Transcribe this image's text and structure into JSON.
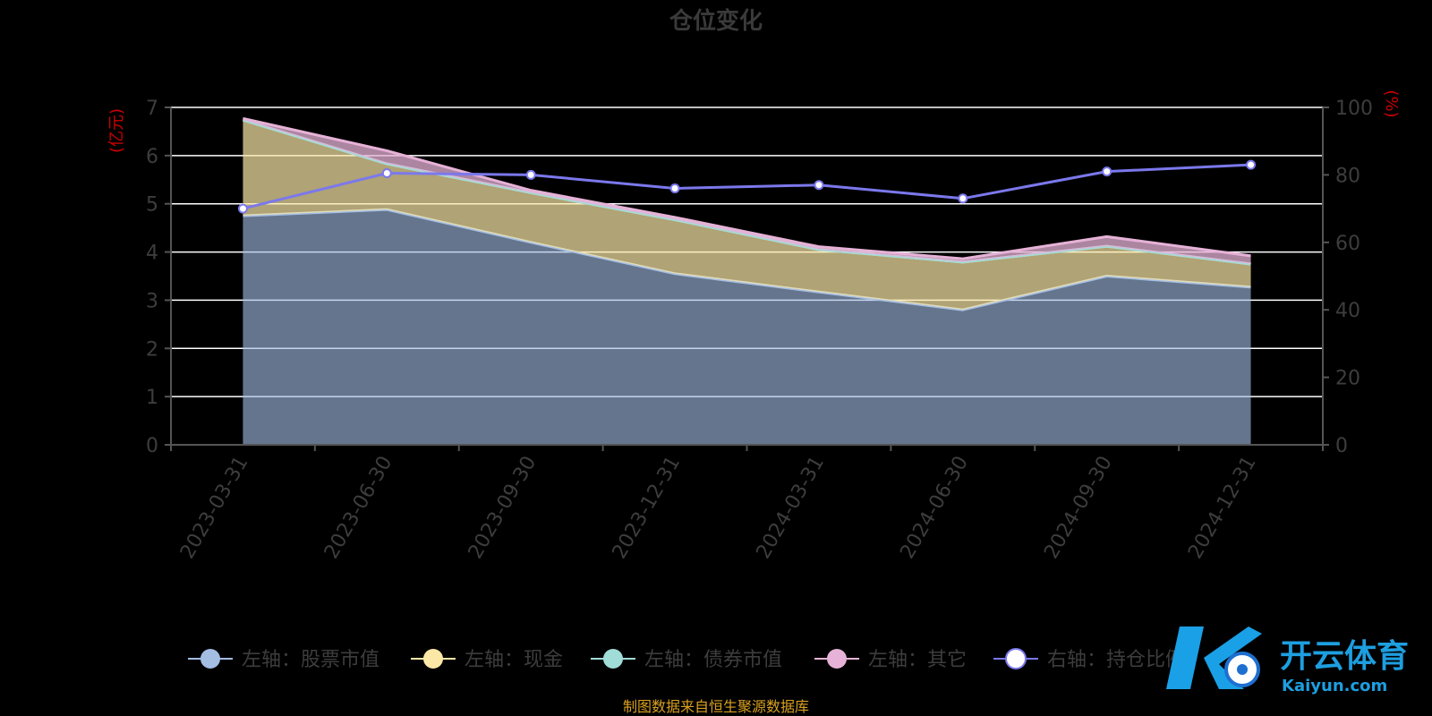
{
  "title": "仓位变化",
  "source": "制图数据来自恒生聚源数据库",
  "logo": {
    "main": "开云体育",
    "sub": "Kaiyun.com"
  },
  "colors": {
    "stock": "#a3bde3",
    "cash": "#fbe8a6",
    "bond": "#a0dcd8",
    "other": "#e6b2d7",
    "ratio": "#7b78ec",
    "grid": "#ffffff",
    "axis": "#555555"
  },
  "chart_data": {
    "type": "area",
    "title": "仓位变化",
    "categories": [
      "2023-03-31",
      "2023-06-30",
      "2023-09-30",
      "2023-12-31",
      "2024-03-31",
      "2024-06-30",
      "2024-09-30",
      "2024-12-31"
    ],
    "left_axis": {
      "unit": "(亿元)",
      "ylim": [
        0,
        7
      ],
      "ticks": [
        "0",
        "1",
        "2",
        "3",
        "4",
        "5",
        "6",
        "7"
      ]
    },
    "right_axis": {
      "unit": "(%)",
      "ylim": [
        0,
        100
      ],
      "ticks": [
        "0",
        "20",
        "40",
        "60",
        "80",
        "100"
      ]
    },
    "grid": true,
    "legend_position": "bottom",
    "series": [
      {
        "name": "左轴：股票市值",
        "axis": "left",
        "type": "area",
        "stacked": true,
        "values": [
          4.75,
          4.88,
          4.2,
          3.55,
          3.17,
          2.8,
          3.5,
          3.27
        ]
      },
      {
        "name": "左轴：现金",
        "axis": "left",
        "type": "area",
        "stacked": true,
        "values": [
          1.99,
          0.95,
          1.03,
          1.12,
          0.88,
          0.99,
          0.62,
          0.48
        ]
      },
      {
        "name": "左轴：债券市值",
        "axis": "left",
        "type": "area",
        "stacked": true,
        "values": [
          0,
          0,
          0,
          0,
          0,
          0,
          0,
          0
        ]
      },
      {
        "name": "左轴：其它",
        "axis": "left",
        "type": "area",
        "stacked": true,
        "values": [
          0.03,
          0.27,
          0.05,
          0.05,
          0.06,
          0.07,
          0.2,
          0.17
        ]
      },
      {
        "name": "右轴：持仓比例",
        "axis": "right",
        "type": "line",
        "values": [
          70,
          80.5,
          80,
          76,
          77,
          73,
          81,
          83
        ]
      }
    ]
  }
}
